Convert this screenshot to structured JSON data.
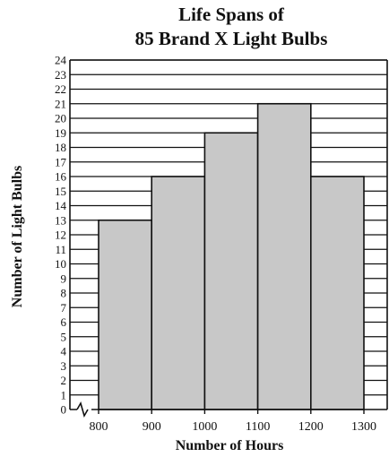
{
  "chart_data": {
    "type": "bar",
    "title_lines": [
      "Life Spans of",
      "85 Brand X Light Bulbs"
    ],
    "xlabel": "Number of Hours",
    "ylabel": "Number of Light Bulbs",
    "bin_edges": [
      800,
      900,
      1000,
      1100,
      1200,
      1300
    ],
    "values": [
      13,
      16,
      19,
      21,
      16
    ],
    "x_tick_labels": [
      "800",
      "900",
      "1000",
      "1100",
      "1200",
      "1300"
    ],
    "ylim": [
      0,
      24
    ],
    "y_tick_step": 1,
    "grid": true,
    "axis_break": true,
    "bar_color": "#c8c8c8",
    "line_color": "#111111"
  }
}
